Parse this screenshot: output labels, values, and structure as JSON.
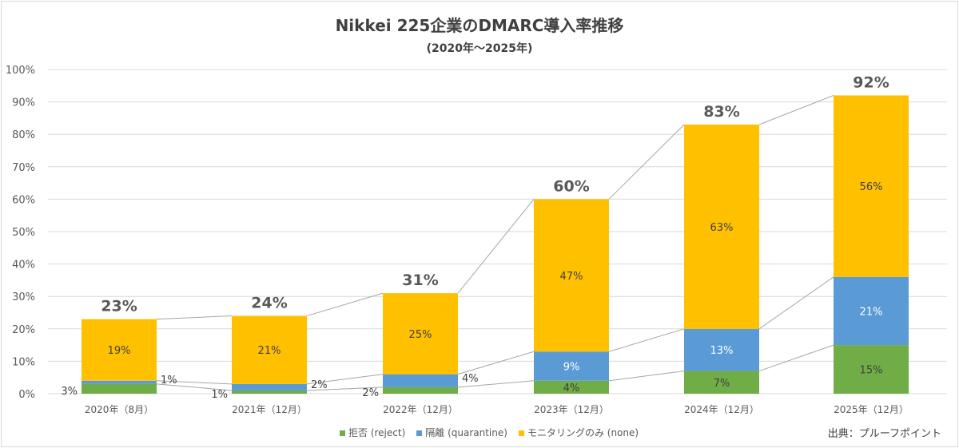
{
  "chart_data": {
    "type": "bar",
    "stacked": true,
    "title": "Nikkei 225企業のDMARC導入率推移",
    "subtitle": "(2020年〜2025年)",
    "categories": [
      "2020年（8月）",
      "2021年（12月）",
      "2022年（12月）",
      "2023年（12月）",
      "2024年（12月）",
      "2025年（12月）"
    ],
    "series": [
      {
        "name": "拒否 (reject)",
        "color": "#70ad47",
        "values": [
          3,
          1,
          2,
          4,
          7,
          15
        ]
      },
      {
        "name": "隔離 (quarantine)",
        "color": "#5b9bd5",
        "values": [
          1,
          2,
          4,
          9,
          13,
          21
        ]
      },
      {
        "name": "モニタリングのみ (none)",
        "color": "#ffc000",
        "values": [
          19,
          21,
          25,
          47,
          63,
          56
        ]
      }
    ],
    "totals": [
      23,
      24,
      31,
      60,
      83,
      92
    ],
    "ylim": [
      0,
      100
    ],
    "yticks": [
      "0%",
      "10%",
      "20%",
      "30%",
      "40%",
      "50%",
      "60%",
      "70%",
      "80%",
      "90%",
      "100%"
    ],
    "grid": true,
    "legend_position": "bottom",
    "source": "出典：プルーフポイント"
  }
}
